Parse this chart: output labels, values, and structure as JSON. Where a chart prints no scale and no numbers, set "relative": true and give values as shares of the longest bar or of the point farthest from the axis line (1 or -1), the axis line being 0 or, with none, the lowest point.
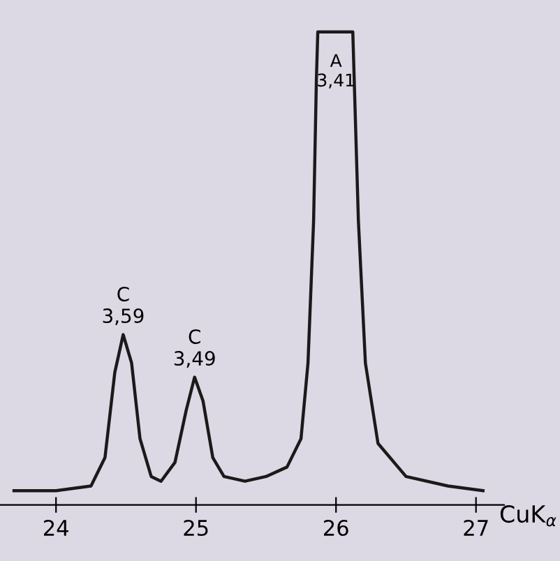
{
  "chart_data": {
    "type": "line",
    "relative": true,
    "xlabel": "CuK$_{α}$",
    "xlim": [
      23.6,
      27.2
    ],
    "xticks": [
      24,
      25,
      26,
      27
    ],
    "x": [
      23.7,
      24.0,
      24.25,
      24.35,
      24.42,
      24.48,
      24.54,
      24.6,
      24.68,
      24.75,
      24.85,
      24.93,
      24.99,
      25.05,
      25.12,
      25.2,
      25.35,
      25.5,
      25.65,
      25.75,
      25.8,
      25.84,
      25.86,
      25.87,
      26.12,
      26.13,
      26.16,
      26.21,
      26.3,
      26.5,
      26.8,
      27.05
    ],
    "series": [
      {
        "color": "#1a1a1a",
        "values": [
          0.03,
          0.03,
          0.04,
          0.1,
          0.28,
          0.36,
          0.3,
          0.14,
          0.06,
          0.05,
          0.09,
          0.2,
          0.27,
          0.22,
          0.1,
          0.06,
          0.05,
          0.06,
          0.08,
          0.14,
          0.3,
          0.6,
          0.9,
          1,
          1,
          0.9,
          0.6,
          0.3,
          0.13,
          0.06,
          0.04,
          0.03
        ]
      }
    ],
    "annotations": [
      {
        "text": "C\n3,59",
        "x": 24.48,
        "y": 0.36
      },
      {
        "text": "C\n3,49",
        "x": 24.99,
        "y": 0.27
      },
      {
        "text": "A\n3,41",
        "x": 26.0,
        "y": 1
      }
    ],
    "grid": false,
    "marker": "none",
    "line_style": "solid"
  }
}
